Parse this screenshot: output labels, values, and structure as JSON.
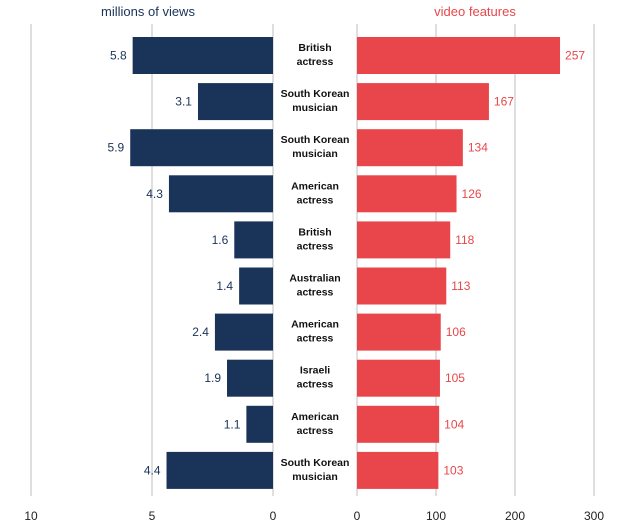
{
  "colors": {
    "left": "#1a3358",
    "right": "#e8464a",
    "grid": "#bfbfbf"
  },
  "chart_data": [
    {
      "type": "bar",
      "orientation": "horizontal",
      "direction": "leftward",
      "ylabel": "",
      "xlabel": "millions of views",
      "xlim": [
        0,
        10
      ],
      "xticks": [
        "10",
        "5",
        "0"
      ],
      "grid": true,
      "categories": [
        "British actress",
        "South Korean musician",
        "South Korean musician",
        "American actress",
        "British actress",
        "Australian actress",
        "American actress",
        "Israeli actress",
        "American actress",
        "South Korean musician"
      ],
      "values": [
        5.8,
        3.1,
        5.9,
        4.3,
        1.6,
        1.4,
        2.4,
        1.9,
        1.1,
        4.4
      ],
      "value_labels": [
        "5.8",
        "3.1",
        "5.9",
        "4.3",
        "1.6",
        "1.4",
        "2.4",
        "1.9",
        "1.1",
        "4.4"
      ]
    },
    {
      "type": "bar",
      "orientation": "horizontal",
      "direction": "rightward",
      "xlabel": "video features",
      "xlim": [
        0,
        300
      ],
      "xticks": [
        "0",
        "100",
        "200",
        "300"
      ],
      "grid": true,
      "categories": [
        "British actress",
        "South Korean musician",
        "South Korean musician",
        "American actress",
        "British actress",
        "Australian actress",
        "American actress",
        "Israeli actress",
        "American actress",
        "South Korean musician"
      ],
      "values": [
        257,
        167,
        134,
        126,
        118,
        113,
        106,
        105,
        104,
        103
      ],
      "value_labels": [
        "257",
        "167",
        "134",
        "126",
        "118",
        "113",
        "106",
        "105",
        "104",
        "103"
      ]
    }
  ],
  "category_labels": [
    [
      "British",
      "actress"
    ],
    [
      "South Korean",
      "musician"
    ],
    [
      "South Korean",
      "musician"
    ],
    [
      "American",
      "actress"
    ],
    [
      "British",
      "actress"
    ],
    [
      "Australian",
      "actress"
    ],
    [
      "American",
      "actress"
    ],
    [
      "Israeli",
      "actress"
    ],
    [
      "American",
      "actress"
    ],
    [
      "South Korean",
      "musician"
    ]
  ]
}
